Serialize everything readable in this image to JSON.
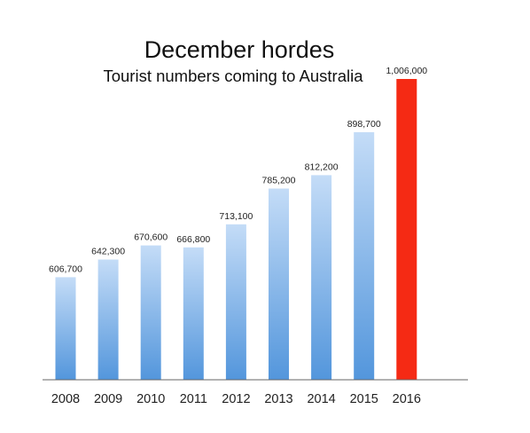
{
  "chart_data": {
    "type": "bar",
    "title": "December hordes",
    "subtitle": "Tourist numbers coming to Australia",
    "categories": [
      "2008",
      "2009",
      "2010",
      "2011",
      "2012",
      "2013",
      "2014",
      "2015",
      "2016"
    ],
    "values": [
      606700,
      642300,
      670600,
      666800,
      713100,
      785200,
      812200,
      898700,
      1006000
    ],
    "value_labels": [
      "606,700",
      "642,300",
      "670,600",
      "666,800",
      "713,100",
      "785,200",
      "812,200",
      "898,700",
      "1,006,000"
    ],
    "ylim": [
      400000,
      1006000
    ],
    "grid": false,
    "legend": "none",
    "colors": {
      "bar_top": "#c4dcf7",
      "bar_bottom": "#5396dc",
      "highlight": "#f52a14",
      "axis": "#666666"
    },
    "highlight_category": "2016"
  }
}
